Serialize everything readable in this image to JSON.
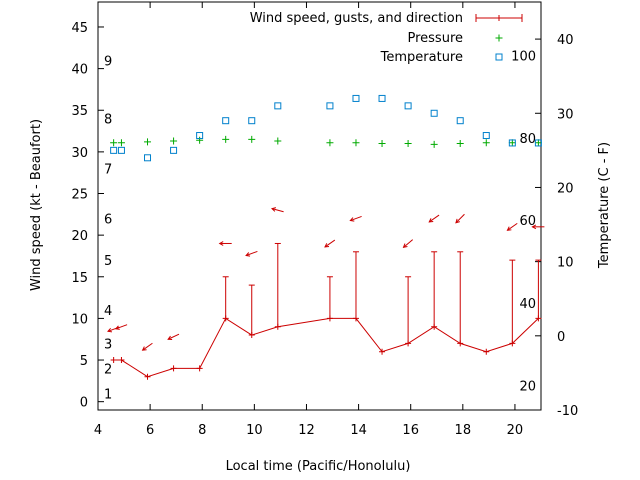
{
  "chart_data": {
    "type": "line",
    "xlabel": "Local time (Pacific/Honolulu)",
    "ylabel": "Wind speed (kt - Beaufort)",
    "y2label": "Temperature (C - F)",
    "xlim": [
      4,
      21
    ],
    "ylim": [
      -1,
      48
    ],
    "y2lim": [
      -10,
      45
    ],
    "x_ticks": [
      4,
      6,
      8,
      10,
      12,
      14,
      16,
      18,
      20
    ],
    "y_ticks": [
      0,
      5,
      10,
      15,
      20,
      25,
      30,
      35,
      40,
      45
    ],
    "y2_ticks": [
      -10,
      0,
      10,
      20,
      30,
      40
    ],
    "beaufort_labels": [
      {
        "label": "1",
        "y": 1
      },
      {
        "label": "2",
        "y": 4
      },
      {
        "label": "3",
        "y": 7
      },
      {
        "label": "4",
        "y": 11
      },
      {
        "label": "5",
        "y": 17
      },
      {
        "label": "6",
        "y": 22
      },
      {
        "label": "7",
        "y": 28
      },
      {
        "label": "8",
        "y": 34
      },
      {
        "label": "9",
        "y": 41
      }
    ],
    "fahrenheit_labels": [
      {
        "label": "20",
        "y2": -6.7
      },
      {
        "label": "40",
        "y2": 4.4
      },
      {
        "label": "60",
        "y2": 15.6
      },
      {
        "label": "80",
        "y2": 26.7
      },
      {
        "label": "100",
        "y2": 37.8
      }
    ],
    "legend_position": "top-right",
    "series": [
      {
        "name": "Wind speed, gusts, and direction",
        "color": "#cc0000",
        "x": [
          4.6,
          4.9,
          5.9,
          6.9,
          7.9,
          8.9,
          9.9,
          10.9,
          12.9,
          13.9,
          14.9,
          15.9,
          16.9,
          17.9,
          18.9,
          19.9,
          20.9
        ],
        "values": [
          5,
          5,
          3,
          4,
          4,
          10,
          8,
          9,
          10,
          10,
          6,
          7,
          9,
          7,
          6,
          7,
          10
        ],
        "gusts": [
          null,
          null,
          null,
          null,
          null,
          15,
          14,
          19,
          15,
          18,
          null,
          15,
          18,
          18,
          null,
          17,
          17
        ],
        "arrow_angle_deg": [
          20,
          20,
          35,
          25,
          null,
          0,
          20,
          -15,
          35,
          20,
          null,
          40,
          35,
          45,
          null,
          35,
          0
        ],
        "arrow_y": [
          8.7,
          9,
          6.6,
          7.8,
          null,
          19,
          17.8,
          23,
          19,
          22,
          null,
          19,
          22,
          22,
          null,
          21,
          21
        ]
      },
      {
        "name": "Pressure",
        "color": "#00aa00",
        "x": [
          4.6,
          4.9,
          5.9,
          6.9,
          7.9,
          8.9,
          9.9,
          10.9,
          12.9,
          13.9,
          14.9,
          15.9,
          16.9,
          17.9,
          18.9,
          19.9,
          20.9
        ],
        "values": [
          31.1,
          31.1,
          31.2,
          31.3,
          31.4,
          31.5,
          31.5,
          31.3,
          31.1,
          31.1,
          31.0,
          31.0,
          30.9,
          31.0,
          31.1,
          31.1,
          31.1
        ]
      },
      {
        "name": "Temperature",
        "color": "#0080cc",
        "axis": "y2",
        "x": [
          4.6,
          4.9,
          5.9,
          6.9,
          7.9,
          8.9,
          9.9,
          10.9,
          12.9,
          13.9,
          14.9,
          15.9,
          16.9,
          17.9,
          18.9,
          19.9,
          20.9
        ],
        "values": [
          25,
          25,
          24,
          25,
          27,
          29,
          29,
          31,
          31,
          32,
          32,
          31,
          30,
          29,
          27,
          26,
          26
        ]
      }
    ]
  }
}
